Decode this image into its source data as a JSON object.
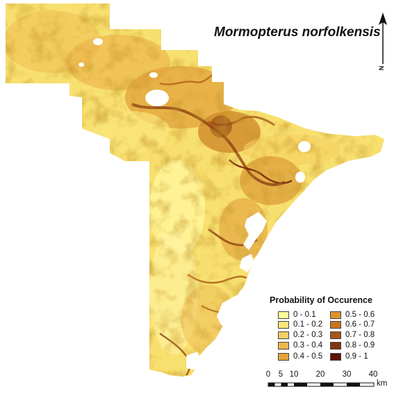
{
  "map": {
    "title": "Mormopterus norfolkensis",
    "north_label": "N",
    "legend": {
      "title": "Probability of Occurence",
      "classes": [
        {
          "label": "0 - 0.1",
          "color": "#ffff99"
        },
        {
          "label": "0.1 - 0.2",
          "color": "#fbe57c"
        },
        {
          "label": "0.2 - 0.3",
          "color": "#f6cf63"
        },
        {
          "label": "0.3 - 0.4",
          "color": "#efb84c"
        },
        {
          "label": "0.4 - 0.5",
          "color": "#e6a33a"
        },
        {
          "label": "0.5 - 0.6",
          "color": "#de922d"
        },
        {
          "label": "0.6 - 0.7",
          "color": "#c87420"
        },
        {
          "label": "0.7 - 0.8",
          "color": "#a65516"
        },
        {
          "label": "0.8 - 0.9",
          "color": "#82360e"
        },
        {
          "label": "0.9 - 1",
          "color": "#5c1308"
        }
      ]
    },
    "scale": {
      "ticks": [
        "0",
        "5",
        "10",
        "20",
        "30",
        "40"
      ],
      "unit": "km"
    }
  }
}
